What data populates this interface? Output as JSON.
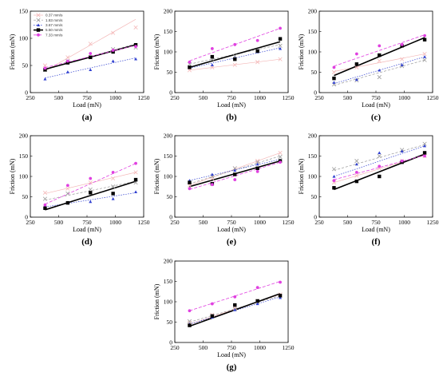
{
  "figure": {
    "colors": {
      "v037": "#f4b8b8",
      "v183": "#9a9a9a",
      "v367": "#2f3fd0",
      "v550": "#000000",
      "v733": "#e040e0"
    }
  },
  "chart_data": [
    {
      "panel": "(a)",
      "type": "scatter",
      "xlabel": "Load (mN)",
      "ylabel": "Friction (mN)",
      "xlim": [
        250,
        1250
      ],
      "ylim": [
        0,
        150
      ],
      "xticks": [
        250,
        500,
        750,
        1000,
        1250
      ],
      "yticks": [
        0,
        50,
        100,
        150
      ],
      "legend_position": "top-left",
      "x": [
        380,
        580,
        780,
        980,
        1180
      ],
      "series": [
        {
          "name": "0.37 mm/s",
          "key": "v037",
          "values": [
            50,
            65,
            90,
            110,
            120
          ],
          "fit": [
            40,
            135
          ]
        },
        {
          "name": "1.83 mm/s",
          "key": "v183",
          "values": [
            42,
            58,
            65,
            80,
            83
          ],
          "fit": [
            42,
            90
          ]
        },
        {
          "name": "3.67 mm/s",
          "key": "v367",
          "values": [
            25,
            38,
            42,
            58,
            62
          ],
          "fit": [
            27,
            64
          ]
        },
        {
          "name": "5.50 mm/s",
          "key": "v550",
          "values": [
            42,
            55,
            65,
            75,
            88
          ],
          "fit": [
            43,
            88
          ]
        },
        {
          "name": "7.33 mm/s",
          "key": "v733",
          "values": [
            45,
            58,
            72,
            78,
            85
          ],
          "fit": [
            46,
            87
          ]
        }
      ]
    },
    {
      "panel": "(b)",
      "type": "scatter",
      "xlabel": "Load (mN)",
      "ylabel": "Friction (mN)",
      "xlim": [
        250,
        1250
      ],
      "ylim": [
        0,
        200
      ],
      "xticks": [
        250,
        500,
        750,
        1000,
        1250
      ],
      "yticks": [
        0,
        50,
        100,
        150,
        200
      ],
      "x": [
        380,
        580,
        780,
        980,
        1180
      ],
      "series": [
        {
          "key": "v037",
          "values": [
            55,
            62,
            68,
            75,
            82
          ],
          "fit": [
            55,
            82
          ]
        },
        {
          "key": "v183",
          "values": [
            70,
            82,
            90,
            102,
            115
          ],
          "fit": [
            70,
            118
          ]
        },
        {
          "key": "v367",
          "values": [
            62,
            68,
            85,
            100,
            108
          ],
          "fit": [
            60,
            110
          ]
        },
        {
          "key": "v550",
          "values": [
            62,
            88,
            82,
            102,
            132
          ],
          "fit": [
            62,
            125
          ]
        },
        {
          "key": "v733",
          "values": [
            75,
            108,
            118,
            128,
            158
          ],
          "fit": [
            78,
            158
          ]
        }
      ]
    },
    {
      "panel": "(c)",
      "type": "scatter",
      "xlabel": "Load (mN)",
      "ylabel": "Friction (mN)",
      "xlim": [
        250,
        1250
      ],
      "ylim": [
        0,
        200
      ],
      "xticks": [
        250,
        500,
        750,
        1000,
        1250
      ],
      "yticks": [
        0,
        50,
        100,
        150,
        200
      ],
      "x": [
        380,
        580,
        780,
        980,
        1180
      ],
      "series": [
        {
          "key": "v037",
          "values": [
            50,
            62,
            78,
            82,
            95
          ],
          "fit": [
            52,
            95
          ]
        },
        {
          "key": "v183",
          "values": [
            20,
            30,
            38,
            65,
            80
          ],
          "fit": [
            18,
            80
          ]
        },
        {
          "key": "v367",
          "values": [
            25,
            32,
            55,
            68,
            88
          ],
          "fit": [
            22,
            88
          ]
        },
        {
          "key": "v550",
          "values": [
            35,
            70,
            92,
            115,
            130
          ],
          "fit": [
            42,
            135
          ]
        },
        {
          "key": "v733",
          "values": [
            62,
            95,
            115,
            118,
            140
          ],
          "fit": [
            65,
            142
          ]
        }
      ]
    },
    {
      "panel": "(d)",
      "type": "scatter",
      "xlabel": "Load (mN)",
      "ylabel": "Friction (mN)",
      "xlim": [
        250,
        1250
      ],
      "ylim": [
        0,
        200
      ],
      "xticks": [
        250,
        500,
        750,
        1000,
        1250
      ],
      "yticks": [
        0,
        50,
        100,
        150,
        200
      ],
      "x": [
        380,
        580,
        780,
        980,
        1180
      ],
      "series": [
        {
          "key": "v037",
          "values": [
            60,
            70,
            85,
            95,
            110
          ],
          "fit": [
            58,
            110
          ]
        },
        {
          "key": "v183",
          "values": [
            45,
            58,
            68,
            75,
            85
          ],
          "fit": [
            42,
            88
          ]
        },
        {
          "key": "v367",
          "values": [
            28,
            35,
            38,
            45,
            62
          ],
          "fit": [
            25,
            60
          ]
        },
        {
          "key": "v550",
          "values": [
            22,
            35,
            60,
            58,
            92
          ],
          "fit": [
            18,
            88
          ]
        },
        {
          "key": "v733",
          "values": [
            30,
            78,
            95,
            110,
            132
          ],
          "fit": [
            32,
            132
          ]
        }
      ]
    },
    {
      "panel": "(e)",
      "type": "scatter",
      "xlabel": "Load (mN)",
      "ylabel": "Friction (mN)",
      "xlim": [
        250,
        1250
      ],
      "ylim": [
        0,
        200
      ],
      "xticks": [
        250,
        500,
        750,
        1000,
        1250
      ],
      "yticks": [
        0,
        50,
        100,
        150,
        200
      ],
      "x": [
        380,
        580,
        780,
        980,
        1180
      ],
      "series": [
        {
          "key": "v037",
          "values": [
            78,
            95,
            120,
            138,
            158
          ],
          "fit": [
            78,
            158
          ]
        },
        {
          "key": "v183",
          "values": [
            85,
            100,
            120,
            135,
            148
          ],
          "fit": [
            82,
            150
          ]
        },
        {
          "key": "v367",
          "values": [
            90,
            105,
            115,
            130,
            140
          ],
          "fit": [
            90,
            142
          ]
        },
        {
          "key": "v550",
          "values": [
            85,
            82,
            105,
            120,
            138
          ],
          "fit": [
            75,
            138
          ]
        },
        {
          "key": "v733",
          "values": [
            70,
            80,
            92,
            112,
            135
          ],
          "fit": [
            68,
            135
          ]
        }
      ]
    },
    {
      "panel": "(f)",
      "type": "scatter",
      "xlabel": "Load (mN)",
      "ylabel": "Friction (mN)",
      "xlim": [
        250,
        1250
      ],
      "ylim": [
        0,
        200
      ],
      "xticks": [
        250,
        500,
        750,
        1000,
        1250
      ],
      "yticks": [
        0,
        50,
        100,
        150,
        200
      ],
      "x": [
        380,
        580,
        780,
        980,
        1180
      ],
      "series": [
        {
          "key": "v037",
          "values": [
            85,
            102,
            120,
            138,
            150
          ],
          "fit": [
            85,
            152
          ]
        },
        {
          "key": "v183",
          "values": [
            118,
            138,
            150,
            165,
            180
          ],
          "fit": [
            115,
            178
          ]
        },
        {
          "key": "v367",
          "values": [
            100,
            130,
            158,
            162,
            175
          ],
          "fit": [
            100,
            175
          ]
        },
        {
          "key": "v550",
          "values": [
            72,
            88,
            100,
            135,
            158
          ],
          "fit": [
            68,
            155
          ]
        },
        {
          "key": "v733",
          "values": [
            90,
            110,
            125,
            138,
            150
          ],
          "fit": [
            92,
            152
          ]
        }
      ]
    },
    {
      "panel": "(g)",
      "type": "scatter",
      "xlabel": "Load (mN)",
      "ylabel": "Friction (mN)",
      "xlim": [
        250,
        1250
      ],
      "ylim": [
        0,
        200
      ],
      "xticks": [
        250,
        500,
        750,
        1000,
        1250
      ],
      "yticks": [
        0,
        50,
        100,
        150,
        200
      ],
      "x": [
        380,
        580,
        780,
        980,
        1180
      ],
      "series": [
        {
          "key": "v037",
          "values": [
            48,
            68,
            85,
            102,
            118
          ],
          "fit": [
            45,
            118
          ]
        },
        {
          "key": "v183",
          "values": [
            52,
            65,
            82,
            100,
            115
          ],
          "fit": [
            50,
            115
          ]
        },
        {
          "key": "v367",
          "values": [
            45,
            62,
            80,
            95,
            110
          ],
          "fit": [
            45,
            112
          ]
        },
        {
          "key": "v550",
          "values": [
            42,
            65,
            92,
            102,
            115
          ],
          "fit": [
            40,
            120
          ]
        },
        {
          "key": "v733",
          "values": [
            78,
            95,
            112,
            135,
            148
          ],
          "fit": [
            78,
            150
          ]
        }
      ]
    }
  ]
}
